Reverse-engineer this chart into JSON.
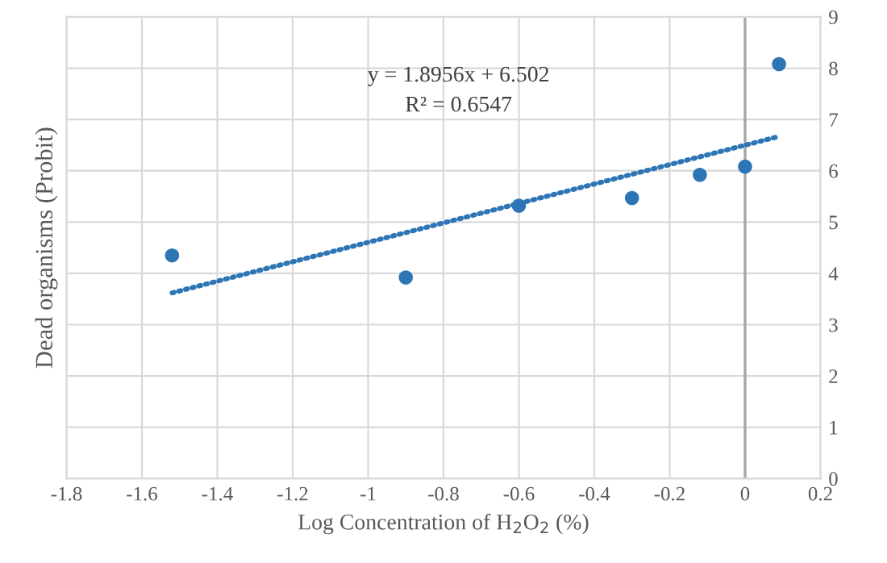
{
  "chart_data": {
    "type": "scatter",
    "xlabel": "Log Concentration of H$_{2}$O$_{2}$ (%)",
    "ylabel": "Dead organisms (Probit)",
    "series": [
      {
        "color": "#2e75b6",
        "x": [
          -1.52,
          -0.9,
          -0.6,
          -0.3,
          -0.12,
          0.0,
          0.09
        ],
        "values": [
          4.35,
          3.92,
          5.32,
          5.47,
          5.92,
          6.08,
          8.08
        ],
        "marker": "circle"
      },
      {
        "type": "line",
        "color": "#2e75b6",
        "x": [
          -1.52,
          0.09
        ],
        "values": [
          3.62,
          6.67
        ],
        "line_style": "dotted",
        "marker": "none"
      }
    ],
    "annotations": [
      "y = 1.8956x + 6.502",
      "R² = 0.6547"
    ],
    "ref_lines": [
      {
        "axis": "x",
        "value": 0,
        "color": "#a6a6a6"
      }
    ],
    "xlim": [
      -1.8,
      0.2
    ],
    "xticks": [
      -1.8,
      -1.6,
      -1.4,
      -1.2,
      -1,
      -0.8,
      -0.6,
      -0.4,
      -0.2,
      0,
      0.2
    ],
    "ylim": [
      0,
      9
    ],
    "yticks": [
      0,
      1,
      2,
      3,
      4,
      5,
      6,
      7,
      8,
      9
    ],
    "grid": true
  }
}
